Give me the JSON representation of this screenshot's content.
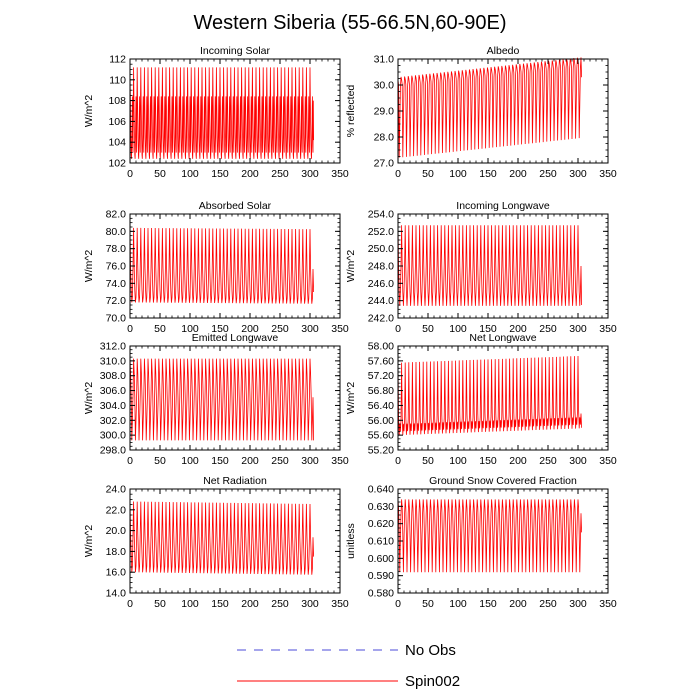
{
  "title": "Western Siberia (55-66.5N,60-90E)",
  "legend": [
    {
      "name": "No Obs",
      "style": "dashed",
      "color": "#4b4bd9"
    },
    {
      "name": "Spin002",
      "style": "solid",
      "color": "#ff0000"
    }
  ],
  "chart_data": [
    {
      "type": "line",
      "title": "Incoming Solar",
      "ylabel": "W/m^2",
      "xlabel": "",
      "xlim": [
        0,
        350
      ],
      "ylim": [
        102,
        112
      ],
      "xticks": [
        "0",
        "50",
        "100",
        "150",
        "200",
        "250",
        "300",
        "350"
      ],
      "yticks": [
        "102",
        "104",
        "106",
        "108",
        "110",
        "112"
      ],
      "grid": false,
      "series": [
        {
          "name": "Spin002",
          "color": "#ff0000",
          "pattern": {
            "x_start": 0,
            "x_end": 306,
            "period": 6,
            "cycle": [
              111.2,
              108.4,
              106.0,
              104.2,
              102.8,
              102.4,
              103.6,
              106.2,
              108.4,
              104.5,
              103.0,
              108.0
            ],
            "end_value": 104.2
          }
        }
      ]
    },
    {
      "type": "line",
      "title": "Albedo",
      "ylabel": "% reflected",
      "xlabel": "",
      "xlim": [
        0,
        350
      ],
      "ylim": [
        27.0,
        31.0
      ],
      "xticks": [
        "0",
        "50",
        "100",
        "150",
        "200",
        "250",
        "300",
        "350"
      ],
      "yticks": [
        "27.0",
        "28.0",
        "29.0",
        "30.0",
        "31.0"
      ],
      "grid": false,
      "series": [
        {
          "name": "Spin002",
          "color": "#ff0000",
          "pattern": {
            "x_start": 0,
            "x_end": 306,
            "period": 6,
            "cycle": [
              30.2,
              30.0,
              27.2,
              28.5,
              29.9,
              30.3
            ],
            "trend": 0.0025,
            "end_value": 30.3
          }
        }
      ]
    },
    {
      "type": "line",
      "title": "Absorbed Solar",
      "ylabel": "W/m^2",
      "xlabel": "",
      "xlim": [
        0,
        350
      ],
      "ylim": [
        70.0,
        82.0
      ],
      "xticks": [
        "0",
        "50",
        "100",
        "150",
        "200",
        "250",
        "300",
        "350"
      ],
      "yticks": [
        "70.0",
        "72.0",
        "74.0",
        "76.0",
        "78.0",
        "80.0",
        "82.0"
      ],
      "grid": false,
      "series": [
        {
          "name": "Spin002",
          "color": "#ff0000",
          "pattern": {
            "x_start": 0,
            "x_end": 306,
            "period": 6,
            "cycle": [
              80.4,
              75.8,
              73.2,
              71.8,
              72.4,
              75.8
            ],
            "trend": -0.0005,
            "end_value": 73.0
          }
        }
      ]
    },
    {
      "type": "line",
      "title": "Incoming Longwave",
      "ylabel": "W/m^2",
      "xlabel": "",
      "xlim": [
        0,
        350
      ],
      "ylim": [
        242.0,
        254.0
      ],
      "xticks": [
        "0",
        "50",
        "100",
        "150",
        "200",
        "250",
        "300",
        "350"
      ],
      "yticks": [
        "242.0",
        "244.0",
        "246.0",
        "248.0",
        "250.0",
        "252.0",
        "254.0"
      ],
      "grid": false,
      "series": [
        {
          "name": "Spin002",
          "color": "#ff0000",
          "pattern": {
            "x_start": 0,
            "x_end": 306,
            "period": 6,
            "cycle": [
              252.7,
              248.0,
              245.0,
              243.4,
              245.0,
              248.0
            ],
            "end_value": 243.5
          }
        }
      ]
    },
    {
      "type": "line",
      "title": "Emitted Longwave",
      "ylabel": "W/m^2",
      "xlabel": "",
      "xlim": [
        0,
        350
      ],
      "ylim": [
        298.0,
        312.0
      ],
      "xticks": [
        "0",
        "50",
        "100",
        "150",
        "200",
        "250",
        "300",
        "350"
      ],
      "yticks": [
        "298.0",
        "300.0",
        "302.0",
        "304.0",
        "306.0",
        "308.0",
        "310.0",
        "312.0"
      ],
      "grid": false,
      "series": [
        {
          "name": "Spin002",
          "color": "#ff0000",
          "pattern": {
            "x_start": 0,
            "x_end": 306,
            "period": 6,
            "cycle": [
              310.3,
              308.3,
              305.1,
              299.3,
              302.0,
              305.1
            ],
            "end_value": 299.3
          }
        }
      ]
    },
    {
      "type": "line",
      "title": "Net Longwave",
      "ylabel": "W/m^2",
      "xlabel": "",
      "xlim": [
        0,
        350
      ],
      "ylim": [
        55.2,
        58.0
      ],
      "xticks": [
        "0",
        "50",
        "100",
        "150",
        "200",
        "250",
        "300",
        "350"
      ],
      "yticks": [
        "55.20",
        "55.60",
        "56.00",
        "56.40",
        "56.80",
        "57.20",
        "57.60",
        "58.00"
      ],
      "grid": false,
      "series": [
        {
          "name": "Spin002",
          "color": "#ff0000",
          "pattern": {
            "x_start": 0,
            "x_end": 306,
            "period": 6,
            "cycle": [
              57.55,
              56.1,
              55.6,
              55.9,
              55.7,
              56.0
            ],
            "trend": 0.0006,
            "end_value": 55.8
          }
        }
      ]
    },
    {
      "type": "line",
      "title": "Net Radiation",
      "ylabel": "W/m^2",
      "xlabel": "",
      "xlim": [
        0,
        350
      ],
      "ylim": [
        14.0,
        24.0
      ],
      "xticks": [
        "0",
        "50",
        "100",
        "150",
        "200",
        "250",
        "300",
        "350"
      ],
      "yticks": [
        "14.0",
        "16.0",
        "18.0",
        "20.0",
        "22.0",
        "24.0"
      ],
      "grid": false,
      "series": [
        {
          "name": "Spin002",
          "color": "#ff0000",
          "pattern": {
            "x_start": 0,
            "x_end": 306,
            "period": 6,
            "cycle": [
              22.8,
              19.6,
              17.8,
              16.0,
              16.6,
              19.6
            ],
            "trend": -0.0008,
            "end_value": 17.5
          }
        }
      ]
    },
    {
      "type": "line",
      "title": "Ground Snow Covered Fraction",
      "ylabel": "unitless",
      "xlabel": "",
      "xlim": [
        0,
        350
      ],
      "ylim": [
        0.58,
        0.64
      ],
      "xticks": [
        "0",
        "50",
        "100",
        "150",
        "200",
        "250",
        "300",
        "350"
      ],
      "yticks": [
        "0.580",
        "0.590",
        "0.600",
        "0.610",
        "0.620",
        "0.630",
        "0.640"
      ],
      "grid": false,
      "series": [
        {
          "name": "Spin002",
          "color": "#ff0000",
          "pattern": {
            "x_start": 0,
            "x_end": 306,
            "period": 6,
            "cycle": [
              0.634,
              0.629,
              0.614,
              0.592,
              0.611,
              0.626
            ],
            "end_value": 0.615
          }
        }
      ]
    }
  ]
}
